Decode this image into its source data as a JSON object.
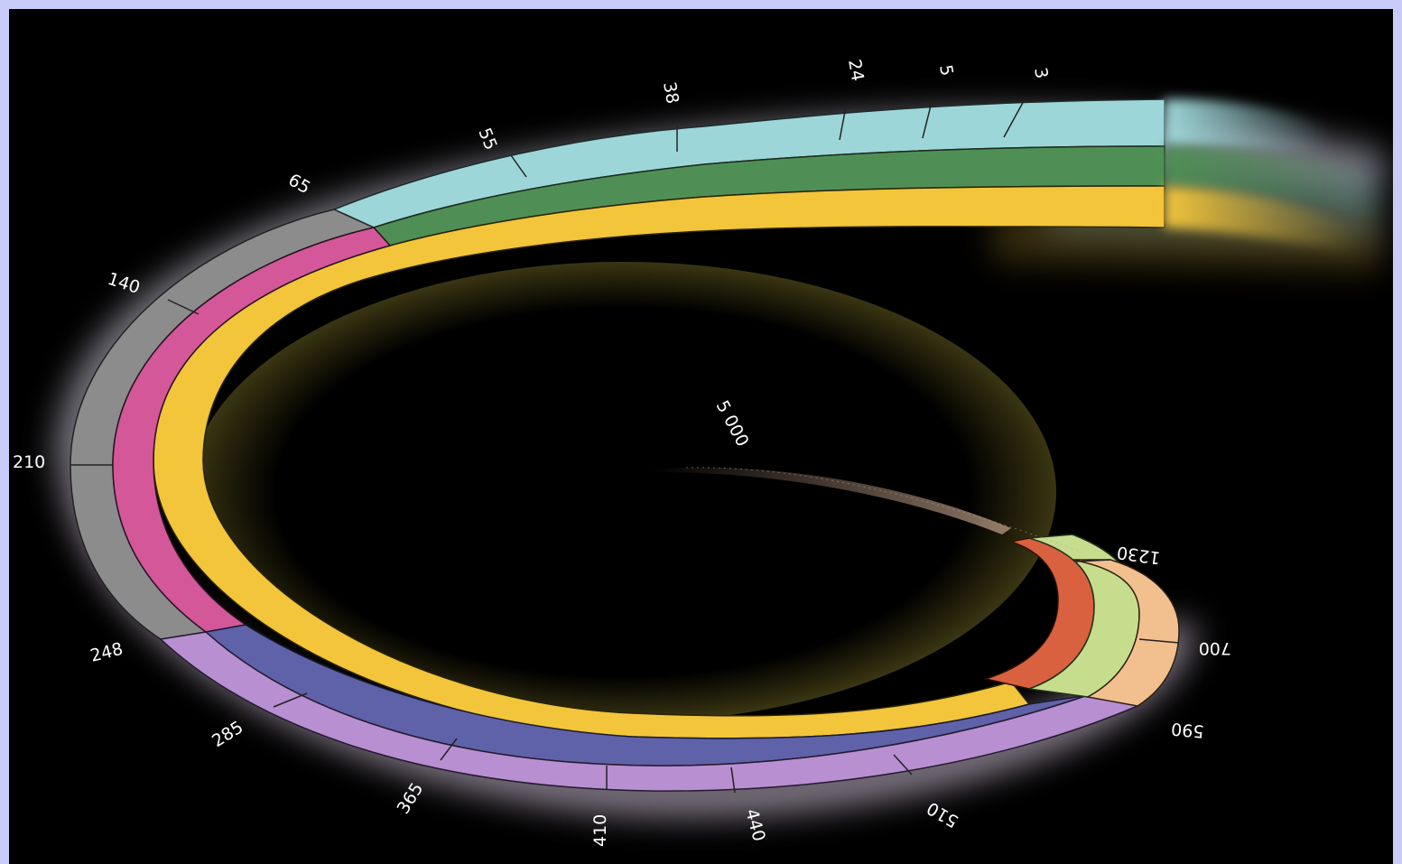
{
  "labels": {
    "center": "5 000",
    "outer_top": [
      "65",
      "55",
      "38",
      "24",
      "5",
      "3"
    ],
    "outer_left": [
      "140",
      "210",
      "248"
    ],
    "outer_bottom": [
      "285",
      "365",
      "410",
      "440",
      "510",
      "590"
    ],
    "outer_right": [
      "700",
      "1230"
    ]
  },
  "colors": {
    "background": "#000000",
    "frame_border": "#c9ccf6",
    "teal": "#9dd6d8",
    "dark_green": "#4f8f55",
    "yellow": "#f2c53a",
    "gray": "#8c8c8c",
    "magenta": "#d4579a",
    "lavender": "#b88fd0",
    "navy": "#5f62a8",
    "orange_red": "#d9613f",
    "light_green": "#c6dd8e",
    "peach": "#f2c08f"
  }
}
